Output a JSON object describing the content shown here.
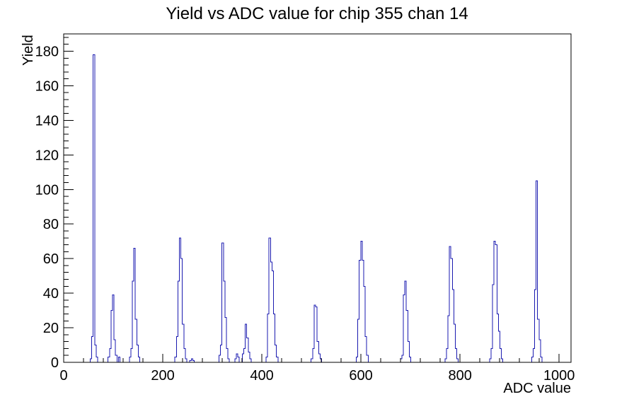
{
  "window": {
    "background": "#ffffff"
  },
  "chart_data": {
    "type": "bar",
    "title": "Yield vs ADC value for chip 355 chan 14",
    "xlabel": "ADC value",
    "ylabel": "Yield",
    "xlim": [
      0,
      1024
    ],
    "ylim": [
      0,
      190
    ],
    "x_major_ticks": [
      0,
      200,
      400,
      600,
      800,
      1000
    ],
    "x_minor_step": 40,
    "y_major_ticks": [
      0,
      20,
      40,
      60,
      80,
      100,
      120,
      140,
      160,
      180
    ],
    "y_minor_step": 4,
    "grid": false,
    "legend_position": "none",
    "bin_width": 3,
    "line_color": "#1a1ab0",
    "axis_color": "#000000",
    "bins": [
      [
        55,
        2
      ],
      [
        58,
        15
      ],
      [
        61,
        178
      ],
      [
        64,
        10
      ],
      [
        67,
        3
      ],
      [
        91,
        3
      ],
      [
        94,
        8
      ],
      [
        97,
        30
      ],
      [
        100,
        39
      ],
      [
        103,
        13
      ],
      [
        106,
        4
      ],
      [
        112,
        3
      ],
      [
        134,
        3
      ],
      [
        137,
        8
      ],
      [
        140,
        47
      ],
      [
        143,
        66
      ],
      [
        146,
        25
      ],
      [
        149,
        10
      ],
      [
        152,
        3
      ],
      [
        226,
        3
      ],
      [
        229,
        15
      ],
      [
        232,
        47
      ],
      [
        235,
        72
      ],
      [
        238,
        60
      ],
      [
        241,
        22
      ],
      [
        244,
        8
      ],
      [
        247,
        2
      ],
      [
        256,
        1
      ],
      [
        259,
        2
      ],
      [
        262,
        1
      ],
      [
        315,
        4
      ],
      [
        318,
        10
      ],
      [
        321,
        69
      ],
      [
        324,
        47
      ],
      [
        327,
        26
      ],
      [
        330,
        8
      ],
      [
        333,
        2
      ],
      [
        347,
        2
      ],
      [
        350,
        5
      ],
      [
        353,
        3
      ],
      [
        362,
        5
      ],
      [
        365,
        8
      ],
      [
        368,
        22
      ],
      [
        371,
        14
      ],
      [
        374,
        6
      ],
      [
        377,
        2
      ],
      [
        410,
        3
      ],
      [
        413,
        28
      ],
      [
        416,
        72
      ],
      [
        419,
        58
      ],
      [
        422,
        53
      ],
      [
        425,
        28
      ],
      [
        428,
        10
      ],
      [
        431,
        3
      ],
      [
        501,
        2
      ],
      [
        504,
        8
      ],
      [
        507,
        33
      ],
      [
        510,
        32
      ],
      [
        513,
        12
      ],
      [
        516,
        5
      ],
      [
        519,
        2
      ],
      [
        592,
        3
      ],
      [
        595,
        25
      ],
      [
        598,
        59
      ],
      [
        601,
        70
      ],
      [
        604,
        59
      ],
      [
        607,
        44
      ],
      [
        610,
        15
      ],
      [
        613,
        4
      ],
      [
        681,
        2
      ],
      [
        684,
        4
      ],
      [
        687,
        39
      ],
      [
        690,
        47
      ],
      [
        693,
        30
      ],
      [
        696,
        12
      ],
      [
        699,
        3
      ],
      [
        771,
        2
      ],
      [
        774,
        8
      ],
      [
        777,
        27
      ],
      [
        780,
        67
      ],
      [
        783,
        60
      ],
      [
        786,
        42
      ],
      [
        789,
        22
      ],
      [
        792,
        8
      ],
      [
        795,
        2
      ],
      [
        861,
        2
      ],
      [
        864,
        8
      ],
      [
        867,
        45
      ],
      [
        870,
        70
      ],
      [
        873,
        68
      ],
      [
        876,
        28
      ],
      [
        879,
        18
      ],
      [
        882,
        8
      ],
      [
        885,
        2
      ],
      [
        946,
        3
      ],
      [
        949,
        8
      ],
      [
        952,
        42
      ],
      [
        955,
        105
      ],
      [
        958,
        25
      ],
      [
        961,
        13
      ],
      [
        964,
        3
      ]
    ]
  }
}
